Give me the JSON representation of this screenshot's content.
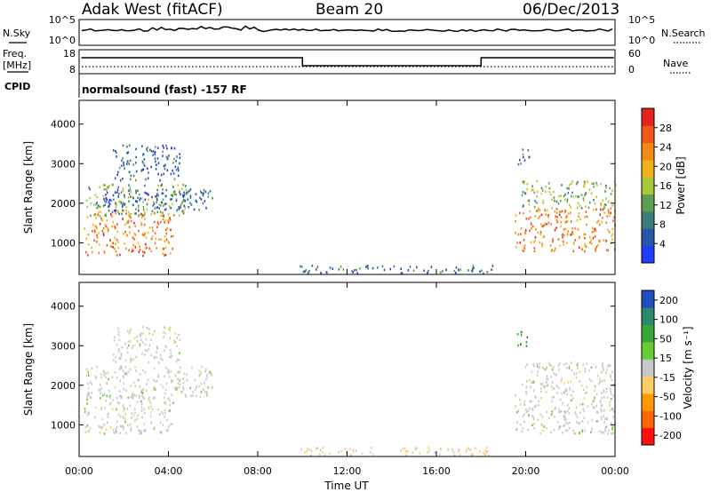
{
  "header": {
    "station": "Adak West (fitACF)",
    "beam": "Beam 20",
    "date": "06/Dec/2013"
  },
  "side_labels": {
    "nsky": "N.Sky",
    "freq_line1": "Freq.",
    "freq_line2": "[MHz]",
    "cpid": "CPID",
    "nsearch": "N.Search",
    "nave": "Nave"
  },
  "mini_axes": {
    "noise_left_top": "10^5",
    "noise_left_bottom": "10^0",
    "noise_right_top": "10^5",
    "noise_right_bottom": "10^0",
    "freq_left_top": "18",
    "freq_left_bottom": "8",
    "nave_right_top": "60",
    "nave_right_bottom": "0"
  },
  "cpid_text": "normalsound (fast) -157 RF",
  "colors": {
    "power_scale": [
      "#1f3cff",
      "#2a55a8",
      "#3b7d7a",
      "#5e9e4e",
      "#a9c93b",
      "#f1b21c",
      "#f08a14",
      "#ee5a16",
      "#e3231c"
    ],
    "velocity_scale": [
      "#ff1010",
      "#ff6600",
      "#ff9900",
      "#ffcc66",
      "#c8c8c8",
      "#66cc33",
      "#33aa33",
      "#2a8a6a",
      "#2050c0"
    ]
  },
  "chart_data": [
    {
      "type": "heatmap",
      "name": "power-panel",
      "ylabel": "Slant Range [km]",
      "yticks": [
        "1000",
        "2000",
        "3000",
        "4000"
      ],
      "ylim": [
        200,
        4600
      ],
      "xlim": [
        0,
        24
      ],
      "colorbar": {
        "label": "Power [dB]",
        "ticks": [
          "4",
          "8",
          "12",
          "16",
          "20",
          "24",
          "28"
        ],
        "range": [
          0,
          32
        ]
      },
      "regions": [
        {
          "t0": 0.2,
          "t1": 4.2,
          "r0": 700,
          "r1": 1800,
          "v": 24
        },
        {
          "t0": 0.3,
          "t1": 4.8,
          "r0": 1700,
          "r1": 2500,
          "v": 14
        },
        {
          "t0": 1.0,
          "t1": 6.0,
          "r0": 1800,
          "r1": 2400,
          "v": 6
        },
        {
          "t0": 1.5,
          "t1": 4.5,
          "r0": 2600,
          "r1": 3500,
          "v": 6
        },
        {
          "t0": 9.8,
          "t1": 18.5,
          "r0": 250,
          "r1": 450,
          "v": 8
        },
        {
          "t0": 19.5,
          "t1": 24.0,
          "r0": 800,
          "r1": 1900,
          "v": 24
        },
        {
          "t0": 19.8,
          "t1": 24.0,
          "r0": 1900,
          "r1": 2600,
          "v": 14
        },
        {
          "t0": 19.6,
          "t1": 20.2,
          "r0": 3000,
          "r1": 3400,
          "v": 10
        }
      ]
    },
    {
      "type": "heatmap",
      "name": "velocity-panel",
      "ylabel": "Slant Range [km]",
      "xlabel": "Time UT",
      "yticks": [
        "1000",
        "2000",
        "3000",
        "4000"
      ],
      "xticks": [
        "00:00",
        "04:00",
        "08:00",
        "12:00",
        "16:00",
        "20:00",
        "00:00"
      ],
      "ylim": [
        200,
        4600
      ],
      "xlim": [
        0,
        24
      ],
      "colorbar": {
        "label": "Velocity [m s⁻¹]",
        "ticks": [
          "200",
          "100",
          "50",
          "15",
          "-15",
          "-50",
          "-100",
          "-200"
        ],
        "range": [
          -250,
          250
        ]
      },
      "regions": [
        {
          "t0": 0.2,
          "t1": 4.2,
          "r0": 800,
          "r1": 1800,
          "v": 0
        },
        {
          "t0": 0.3,
          "t1": 6.0,
          "r0": 1700,
          "r1": 2500,
          "v": 0
        },
        {
          "t0": 1.5,
          "t1": 4.5,
          "r0": 2600,
          "r1": 3500,
          "v": 0
        },
        {
          "t0": 9.8,
          "t1": 18.5,
          "r0": 250,
          "r1": 450,
          "v": -40
        },
        {
          "t0": 19.5,
          "t1": 24.0,
          "r0": 800,
          "r1": 1900,
          "v": 0
        },
        {
          "t0": 19.8,
          "t1": 24.0,
          "r0": 1900,
          "r1": 2600,
          "v": 0
        },
        {
          "t0": 19.6,
          "t1": 20.2,
          "r0": 3000,
          "r1": 3400,
          "v": 120
        }
      ]
    }
  ]
}
